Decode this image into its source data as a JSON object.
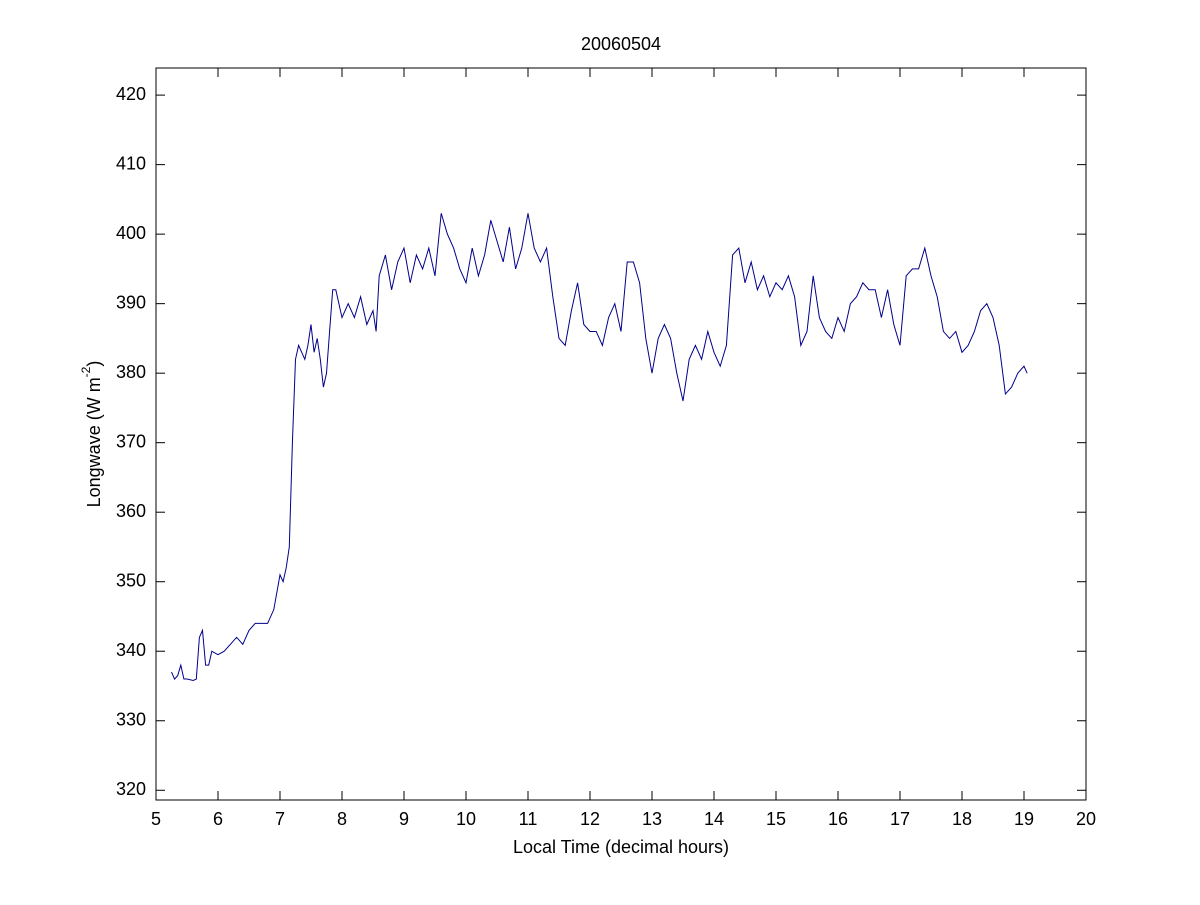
{
  "chart_data": {
    "type": "line",
    "title": "20060504",
    "xlabel": "Local Time (decimal hours)",
    "ylabel": [
      "Longwave (W m",
      "-2",
      ")"
    ],
    "xlim": [
      5,
      20
    ],
    "ylim": [
      318.6,
      423.9
    ],
    "xticks": [
      5,
      6,
      7,
      8,
      9,
      10,
      11,
      12,
      13,
      14,
      15,
      16,
      17,
      18,
      19,
      20
    ],
    "yticks": [
      320,
      330,
      340,
      350,
      360,
      370,
      380,
      390,
      400,
      410,
      420
    ],
    "grid": false,
    "x": [
      5.25,
      5.3,
      5.35,
      5.4,
      5.45,
      5.5,
      5.6,
      5.65,
      5.7,
      5.75,
      5.8,
      5.85,
      5.9,
      6.0,
      6.1,
      6.2,
      6.3,
      6.4,
      6.5,
      6.6,
      6.7,
      6.8,
      6.9,
      7.0,
      7.05,
      7.1,
      7.15,
      7.2,
      7.25,
      7.3,
      7.35,
      7.4,
      7.45,
      7.5,
      7.55,
      7.6,
      7.65,
      7.7,
      7.75,
      7.8,
      7.85,
      7.9,
      8.0,
      8.1,
      8.2,
      8.3,
      8.4,
      8.5,
      8.55,
      8.6,
      8.7,
      8.8,
      8.9,
      9.0,
      9.1,
      9.2,
      9.3,
      9.4,
      9.5,
      9.6,
      9.7,
      9.8,
      9.9,
      10.0,
      10.1,
      10.2,
      10.3,
      10.4,
      10.5,
      10.6,
      10.7,
      10.8,
      10.9,
      11.0,
      11.1,
      11.2,
      11.3,
      11.4,
      11.5,
      11.6,
      11.7,
      11.8,
      11.9,
      12.0,
      12.1,
      12.2,
      12.3,
      12.4,
      12.5,
      12.6,
      12.7,
      12.8,
      12.9,
      13.0,
      13.1,
      13.2,
      13.3,
      13.4,
      13.5,
      13.6,
      13.7,
      13.8,
      13.9,
      14.0,
      14.1,
      14.2,
      14.3,
      14.4,
      14.5,
      14.6,
      14.7,
      14.8,
      14.9,
      15.0,
      15.1,
      15.2,
      15.3,
      15.4,
      15.5,
      15.6,
      15.7,
      15.8,
      15.9,
      16.0,
      16.1,
      16.2,
      16.3,
      16.4,
      16.5,
      16.6,
      16.7,
      16.8,
      16.9,
      17.0,
      17.1,
      17.2,
      17.3,
      17.4,
      17.5,
      17.6,
      17.7,
      17.8,
      17.9,
      18.0,
      18.1,
      18.2,
      18.3,
      18.4,
      18.5,
      18.6,
      18.7,
      18.8,
      18.9,
      19.0,
      19.05
    ],
    "series": [
      {
        "color": "#00008b",
        "values": [
          337,
          336,
          336.5,
          338,
          336,
          336,
          335.8,
          336,
          342,
          343,
          338,
          338,
          340,
          339.5,
          340,
          341,
          342,
          341,
          343,
          344,
          344,
          344,
          346,
          351,
          350,
          352,
          355,
          370,
          382,
          384,
          383,
          382,
          384,
          387,
          383,
          385,
          382,
          378,
          380,
          386,
          392,
          392,
          388,
          390,
          388,
          391,
          387,
          389,
          386,
          394,
          397,
          392,
          396,
          398,
          393,
          397,
          395,
          398,
          394,
          403,
          400,
          398,
          395,
          393,
          398,
          394,
          397,
          402,
          399,
          396,
          401,
          395,
          398,
          403,
          398,
          396,
          398,
          391,
          385,
          384,
          389,
          393,
          387,
          386,
          386,
          384,
          388,
          390,
          386,
          396,
          396,
          393,
          385,
          380,
          385,
          387,
          385,
          380,
          376,
          382,
          384,
          382,
          386,
          383,
          381,
          384,
          397,
          398,
          393,
          396,
          392,
          394,
          391,
          393,
          392,
          394,
          391,
          384,
          386,
          394,
          388,
          386,
          385,
          388,
          386,
          390,
          391,
          393,
          392,
          392,
          388,
          392,
          387,
          384,
          394,
          395,
          395,
          398,
          394,
          391,
          386,
          385,
          386,
          383,
          384,
          386,
          389,
          390,
          388,
          384,
          377,
          378,
          380,
          381,
          380
        ]
      }
    ]
  }
}
